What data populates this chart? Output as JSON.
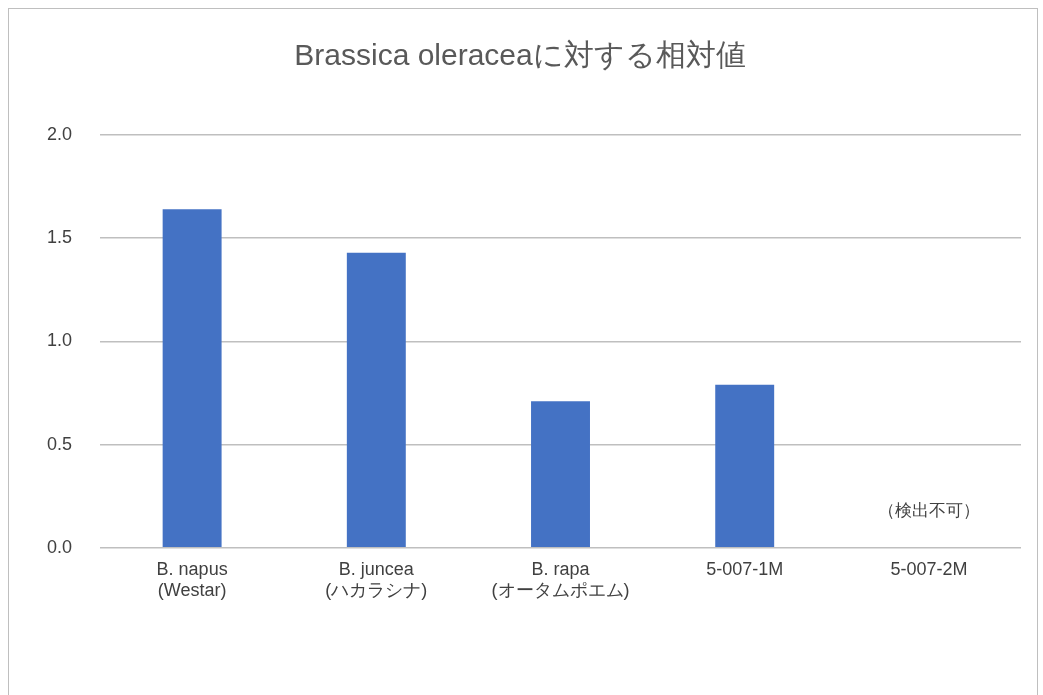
{
  "chart_data": {
    "type": "bar",
    "title": "Brassica oleraceaに対する相対値",
    "categories": [
      "B. napus\n(Westar)",
      "B. juncea\n(ハカラシナ)",
      "B. rapa\n(オータムポエム)",
      "5-007-1M",
      "5-007-2M"
    ],
    "values": [
      1.64,
      1.43,
      0.71,
      0.79,
      null
    ],
    "color": "#4472c4",
    "ylim": [
      0,
      2
    ],
    "yticks": [
      {
        "value": 0,
        "label": "0.0"
      },
      {
        "value": 0.5,
        "label": "0.5"
      },
      {
        "value": 1,
        "label": "1.0"
      },
      {
        "value": 1.5,
        "label": "1.5"
      },
      {
        "value": 2,
        "label": "2.0"
      }
    ],
    "grid": "y",
    "legend": false,
    "annotations": [
      "（検出不可）"
    ]
  }
}
